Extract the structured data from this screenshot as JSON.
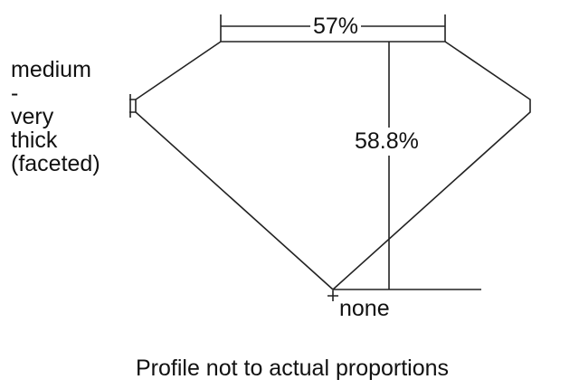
{
  "table_label": "57%",
  "depth_label": "58.8%",
  "girdle_label": [
    "medium",
    "-",
    "very",
    "thick",
    "(faceted)"
  ],
  "culet_label": "none",
  "caption": "Profile not to actual proportions"
}
